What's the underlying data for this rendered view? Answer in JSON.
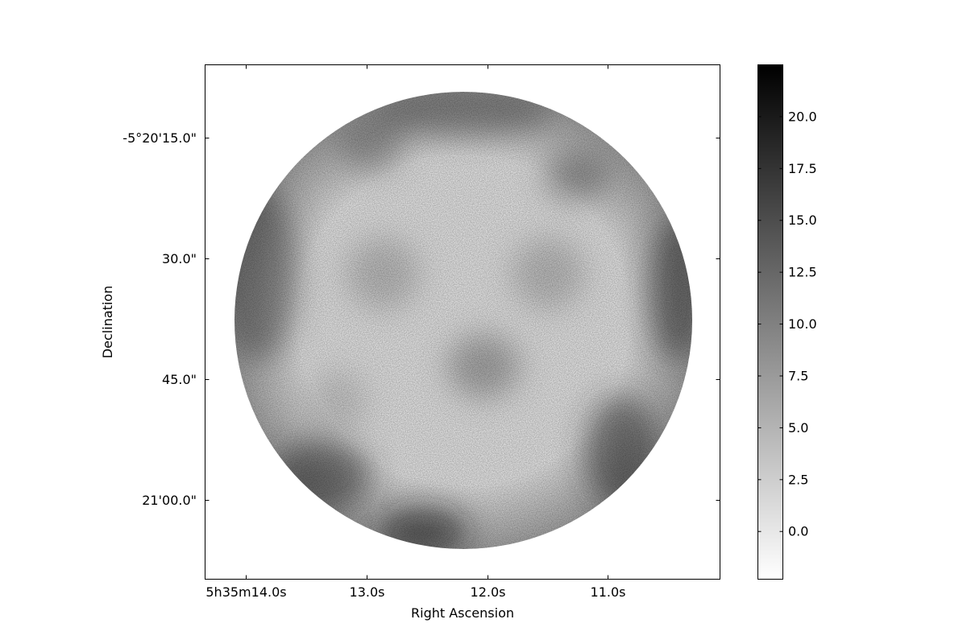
{
  "chart_data": {
    "type": "heatmap",
    "title": "",
    "xlabel": "Right Ascension",
    "ylabel": "Declination",
    "colormap": "gray_r",
    "x_ticks": [
      "5h35m14.0s",
      "13.0s",
      "12.0s",
      "11.0s"
    ],
    "y_ticks": [
      "-5°20'15.0\"",
      "30.0\"",
      "45.0\"",
      "21'00.0\""
    ],
    "colorbar": {
      "ticks": [
        "0.0",
        "2.5",
        "5.0",
        "7.5",
        "10.0",
        "12.5",
        "15.0",
        "17.5",
        "20.0"
      ],
      "tick_values": [
        0.0,
        2.5,
        5.0,
        7.5,
        10.0,
        12.5,
        15.0,
        17.5,
        20.0
      ],
      "range": [
        -2.3,
        22.5
      ]
    },
    "image_shape": "circular field of view",
    "intensity_features": [
      {
        "region": "rim, left",
        "level": "high"
      },
      {
        "region": "rim, lower-left",
        "level": "high"
      },
      {
        "region": "rim, bottom",
        "level": "high"
      },
      {
        "region": "rim, lower-right",
        "level": "high"
      },
      {
        "region": "rim, right",
        "level": "high"
      },
      {
        "region": "rim, top",
        "level": "moderate"
      },
      {
        "region": "center",
        "level": "moderate"
      },
      {
        "region": "interior",
        "level": "low"
      }
    ],
    "grid": false,
    "colors": {
      "low": "#ffffff",
      "high": "#000000"
    }
  }
}
